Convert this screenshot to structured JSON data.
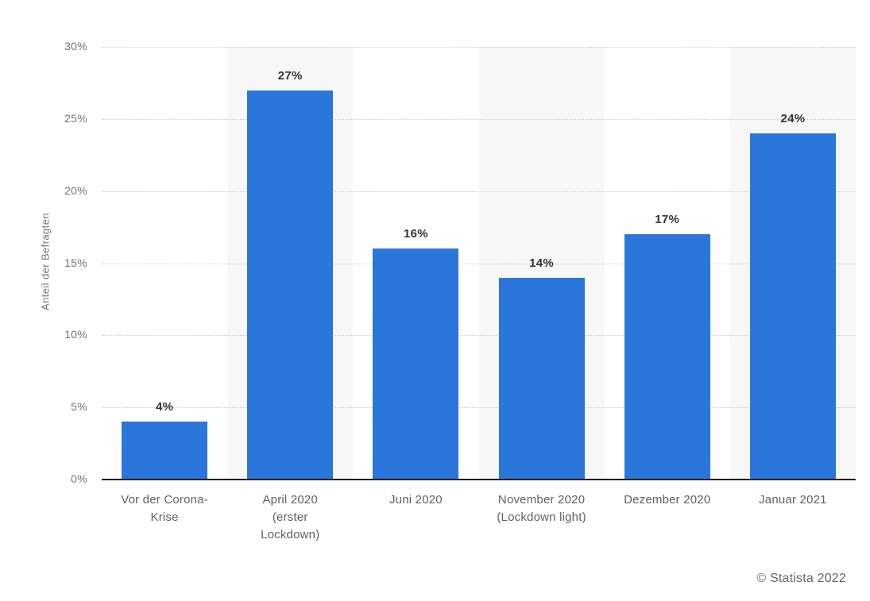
{
  "chart_data": {
    "type": "bar",
    "title": "",
    "categories": [
      "Vor der Corona-\nKrise",
      "April 2020\n(erster\nLockdown)",
      "Juni 2020",
      "November 2020\n(Lockdown light)",
      "Dezember 2020",
      "Januar 2021"
    ],
    "values": [
      4,
      27,
      16,
      14,
      17,
      24
    ],
    "value_labels": [
      "4%",
      "27%",
      "16%",
      "14%",
      "17%",
      "24%"
    ],
    "xlabel": "",
    "ylabel": "Anteil der Befragten",
    "ylim": [
      0,
      30
    ],
    "yticks": [
      0,
      5,
      10,
      15,
      20,
      25,
      30
    ],
    "ytick_labels": [
      "0%",
      "5%",
      "10%",
      "15%",
      "20%",
      "25%",
      "30%"
    ],
    "grid": "horizontal-dotted",
    "legend_position": "none",
    "striped_column_indices": [
      1,
      3,
      5
    ],
    "colors": {
      "bar": "#2b76da",
      "stripe": "#f7f7f7",
      "gridline": "#c9c9c9",
      "axis_line": "#1b1b1b",
      "tick_text": "#737373",
      "category_text": "#606060",
      "value_text": "#333333"
    }
  },
  "footer": {
    "copyright": "© Statista 2022"
  }
}
